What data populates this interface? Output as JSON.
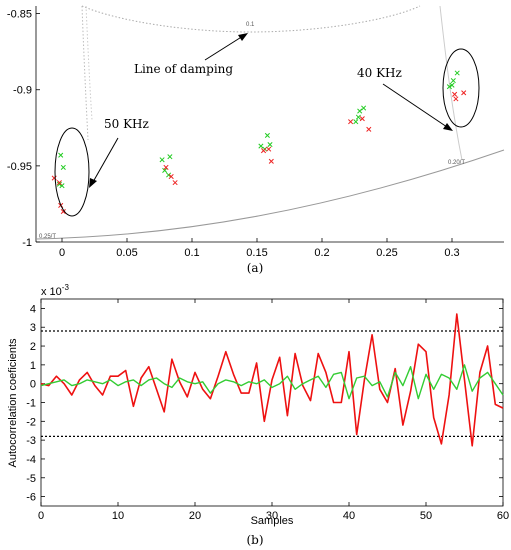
{
  "chart_data": [
    {
      "type": "scatter",
      "panel_label": "(a)",
      "xlim": [
        -0.02,
        0.34
      ],
      "ylim": [
        -1.0,
        -0.845
      ],
      "xticks": [
        "0",
        "0.05",
        "0.1",
        "0.15",
        "0.2",
        "0.25",
        "0.3"
      ],
      "xtick_values": [
        0,
        0.05,
        0.1,
        0.15,
        0.2,
        0.25,
        0.3
      ],
      "yticks": [
        "-0.85",
        "-0.9",
        "-0.95",
        "-1"
      ],
      "ytick_values": [
        -0.85,
        -0.9,
        -0.95,
        -1.0
      ],
      "series": [
        {
          "color": "#22cc22",
          "marker": "x",
          "points": [
            [
              -0.001,
              -0.943
            ],
            [
              0.001,
              -0.951
            ],
            [
              -0.002,
              -0.962
            ],
            [
              0.0,
              -0.963
            ],
            [
              0.077,
              -0.946
            ],
            [
              0.083,
              -0.944
            ],
            [
              0.079,
              -0.953
            ],
            [
              0.082,
              -0.956
            ],
            [
              0.153,
              -0.937
            ],
            [
              0.158,
              -0.93
            ],
            [
              0.16,
              -0.936
            ],
            [
              0.156,
              -0.939
            ],
            [
              0.226,
              -0.921
            ],
            [
              0.229,
              -0.914
            ],
            [
              0.232,
              -0.912
            ],
            [
              0.228,
              -0.918
            ],
            [
              0.298,
              -0.898
            ],
            [
              0.301,
              -0.894
            ],
            [
              0.304,
              -0.889
            ],
            [
              0.3,
              -0.897
            ]
          ]
        },
        {
          "color": "#ee2222",
          "marker": "x",
          "points": [
            [
              -0.006,
              -0.958
            ],
            [
              -0.002,
              -0.961
            ],
            [
              -0.001,
              -0.976
            ],
            [
              0.001,
              -0.98
            ],
            [
              0.08,
              -0.951
            ],
            [
              0.084,
              -0.957
            ],
            [
              0.087,
              -0.961
            ],
            [
              0.155,
              -0.94
            ],
            [
              0.159,
              -0.939
            ],
            [
              0.161,
              -0.947
            ],
            [
              0.222,
              -0.921
            ],
            [
              0.236,
              -0.926
            ],
            [
              0.231,
              -0.919
            ],
            [
              0.302,
              -0.903
            ],
            [
              0.303,
              -0.906
            ],
            [
              0.309,
              -0.902
            ]
          ]
        }
      ],
      "grid_curves": [
        {
          "label": "0.1",
          "style": "dotted"
        },
        {
          "label": "0.20/T",
          "style": "solid"
        },
        {
          "label": "0.25/T",
          "style": "solid"
        }
      ],
      "annotations": {
        "damping": "Line of damping",
        "khz50": "50 KHz",
        "khz40": "40 KHz"
      }
    },
    {
      "type": "line",
      "panel_label": "(b)",
      "xlabel": "Samples",
      "ylabel": "Autocorrelation coeficients",
      "multiplier": "x 10",
      "multiplier_exp": "-3",
      "xlim": [
        0,
        60
      ],
      "ylim": [
        -6.5,
        4.5
      ],
      "xticks": [
        "0",
        "10",
        "20",
        "30",
        "40",
        "50",
        "60"
      ],
      "xtick_values": [
        0,
        10,
        20,
        30,
        40,
        50,
        60
      ],
      "yticks": [
        "4",
        "3",
        "2",
        "1",
        "0",
        "-1",
        "-2",
        "-3",
        "-4",
        "-5",
        "-6"
      ],
      "ytick_values": [
        4,
        3,
        2,
        1,
        0,
        -1,
        -2,
        -3,
        -4,
        -5,
        -6
      ],
      "confidence_bounds": [
        2.8,
        -2.8
      ],
      "series": [
        {
          "color": "#ee1111",
          "values": [
            0,
            -0.1,
            0.4,
            0.0,
            -0.6,
            0.2,
            0.6,
            -0.1,
            -0.6,
            0.4,
            0.4,
            0.7,
            -1.2,
            0.3,
            0.9,
            -0.3,
            -1.5,
            1.3,
            0.1,
            -0.7,
            0.6,
            -0.3,
            -0.8,
            0.4,
            1.7,
            0.5,
            -0.5,
            -0.5,
            1.1,
            -2.0,
            0.2,
            1.4,
            -1.7,
            1.6,
            -0.1,
            -0.9,
            1.6,
            0.6,
            -1.0,
            -1.0,
            1.7,
            -2.7,
            0.2,
            2.6,
            -0.3,
            -1.0,
            0.8,
            -2.2,
            -0.4,
            2.1,
            1.7,
            -1.8,
            -3.2,
            -0.6,
            3.7,
            0.2,
            -3.3,
            0.6,
            2.0,
            -1.1,
            -1.3
          ]
        },
        {
          "color": "#33cc33",
          "values": [
            -0.1,
            0.0,
            0.1,
            0.2,
            -0.1,
            0.0,
            0.2,
            0.1,
            0.0,
            0.2,
            -0.1,
            0.1,
            0.2,
            -0.1,
            0.2,
            0.3,
            0.0,
            -0.2,
            0.3,
            0.1,
            0.0,
            0.1,
            -0.5,
            0.0,
            0.2,
            0.1,
            -0.1,
            0.1,
            0.0,
            0.2,
            -0.2,
            0.0,
            0.4,
            -0.3,
            0.0,
            0.2,
            0.4,
            -0.2,
            0.5,
            0.6,
            -0.8,
            0.3,
            0.4,
            -0.1,
            0.1,
            -0.7,
            0.6,
            -0.1,
            0.9,
            -0.8,
            0.5,
            -0.3,
            0.5,
            0.3,
            -0.3,
            1.0,
            -0.4,
            0.3,
            0.6,
            0.0,
            -0.6
          ]
        }
      ]
    }
  ]
}
